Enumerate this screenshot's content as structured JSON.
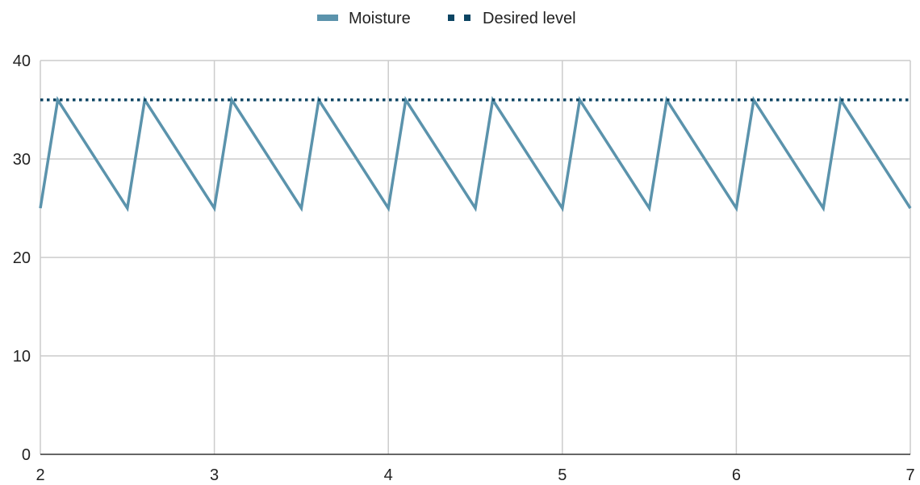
{
  "chart_data": {
    "type": "line",
    "title": "",
    "xlabel": "",
    "ylabel": "",
    "xlim": [
      2,
      7
    ],
    "ylim": [
      0,
      40
    ],
    "x_ticks": [
      2,
      3,
      4,
      5,
      6,
      7
    ],
    "x_tick_labels": [
      "2",
      "3",
      "4",
      "5",
      "6",
      "7"
    ],
    "y_ticks": [
      0,
      10,
      20,
      30,
      40
    ],
    "y_tick_labels": [
      "0",
      "10",
      "20",
      "30",
      "40"
    ],
    "grid": true,
    "legend_position": "top-center",
    "series": [
      {
        "name": "Moisture",
        "color": "#5b93ac",
        "style": "solid",
        "x": [
          2.0,
          2.1,
          2.5,
          2.6,
          3.0,
          3.1,
          3.5,
          3.6,
          4.0,
          4.1,
          4.5,
          4.6,
          5.0,
          5.1,
          5.5,
          5.6,
          6.0,
          6.1,
          6.5,
          6.6,
          7.0
        ],
        "values": [
          25,
          36,
          25,
          36,
          25,
          36,
          25,
          36,
          25,
          36,
          25,
          36,
          25,
          36,
          25,
          36,
          25,
          36,
          25,
          36,
          25
        ]
      },
      {
        "name": "Desired level",
        "color": "#0c4563",
        "style": "dotted",
        "x": [
          2,
          7
        ],
        "values": [
          36,
          36
        ]
      }
    ]
  }
}
